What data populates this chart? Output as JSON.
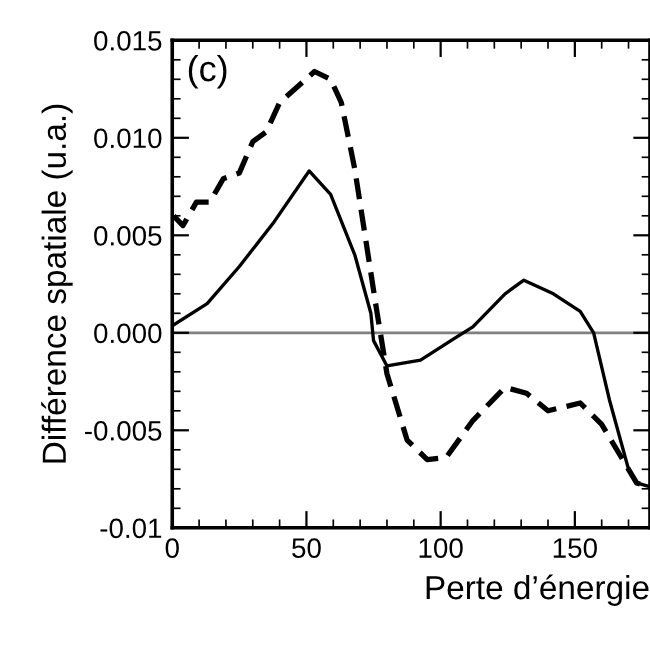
{
  "chart_data": {
    "type": "line",
    "xlabel": "Perte d’énergie",
    "ylabel": "Différence spatiale (u.a.)",
    "annotations": [
      "(c)"
    ],
    "series": [
      {
        "color": "#000000",
        "line_style": "solid",
        "x": [
          0.5,
          13,
          25,
          38,
          51,
          59,
          68,
          74,
          75,
          80,
          92.5,
          105,
          112,
          124,
          131,
          142,
          152,
          157,
          163,
          170,
          173,
          178
        ],
        "values": [
          0.0004,
          0.0015,
          0.0034,
          0.0057,
          0.0083,
          0.0071,
          0.004,
          0.001,
          -0.0004,
          -0.0017,
          -0.0014,
          -0.0003,
          0.0003,
          0.002,
          0.0027,
          0.002,
          0.0011,
          0.0,
          -0.0035,
          -0.007,
          -0.0077,
          -0.0079
        ]
      },
      {
        "color": "#000000",
        "line_style": "dashed",
        "x": [
          0.5,
          4,
          9,
          14,
          19,
          25,
          30,
          35,
          40,
          53,
          59,
          63,
          68,
          76,
          80,
          87.5,
          95,
          102,
          112,
          124,
          132,
          140,
          152,
          160,
          170,
          173,
          178
        ],
        "values": [
          0.006,
          0.0055,
          0.0067,
          0.0067,
          0.0079,
          0.0082,
          0.0098,
          0.0103,
          0.0118,
          0.0134,
          0.013,
          0.0118,
          0.0084,
          0.0013,
          -0.0021,
          -0.0055,
          -0.0065,
          -0.0064,
          -0.0045,
          -0.0028,
          -0.0031,
          -0.004,
          -0.0036,
          -0.0047,
          -0.007,
          -0.0077,
          -0.0079
        ]
      }
    ],
    "xlim": [
      0,
      178
    ],
    "xticks": [
      0,
      50,
      100,
      150
    ],
    "ylim": [
      -0.01,
      0.015
    ],
    "yticks": [
      {
        "value": 0.015,
        "label": "0.015"
      },
      {
        "value": 0.01,
        "label": "0.010"
      },
      {
        "value": 0.005,
        "label": "0.005"
      },
      {
        "value": 0.0,
        "label": "0.000"
      },
      {
        "value": -0.005,
        "label": "-0.005"
      },
      {
        "value": -0.01,
        "label": "-0.01"
      }
    ],
    "ref_lines": [
      {
        "axis": "y",
        "value": 0,
        "color": "#808080"
      }
    ],
    "grid": false,
    "legend": false,
    "marker": "none"
  }
}
